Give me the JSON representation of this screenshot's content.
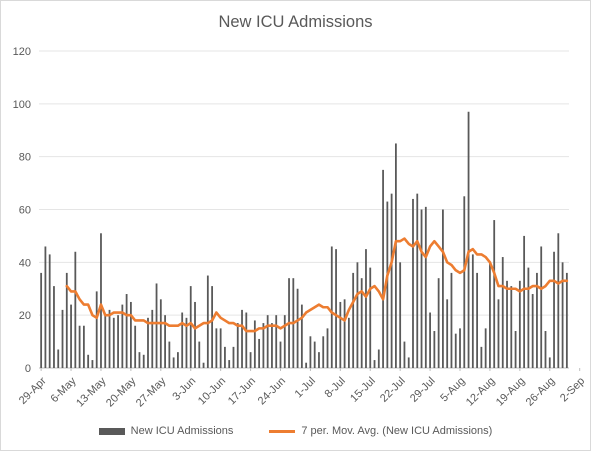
{
  "chart_data": {
    "type": "bar",
    "title": "New ICU Admissions",
    "xlabel": "",
    "ylabel": "",
    "ylim": [
      0,
      120
    ],
    "y_ticks": [
      "0",
      "20",
      "40",
      "60",
      "80",
      "100",
      "120"
    ],
    "grid": true,
    "legend_position": "bottom",
    "x_tick_labels": [
      "29-Apr",
      "6-May",
      "13-May",
      "20-May",
      "27-May",
      "3-Jun",
      "10-Jun",
      "17-Jun",
      "24-Jun",
      "1-Jul",
      "8-Jul",
      "15-Jul",
      "22-Jul",
      "29-Jul",
      "5-Aug",
      "12-Aug",
      "19-Aug",
      "26-Aug",
      "2-Sep"
    ],
    "series": [
      {
        "name": "New ICU Admissions",
        "kind": "bar",
        "color": "#595959",
        "values": [
          36,
          46,
          43,
          31,
          7,
          22,
          36,
          24,
          44,
          16,
          16,
          5,
          3,
          29,
          51,
          20,
          22,
          19,
          20,
          24,
          28,
          25,
          16,
          6,
          5,
          19,
          22,
          32,
          26,
          20,
          10,
          4,
          6,
          21,
          19,
          31,
          25,
          10,
          2,
          35,
          31,
          15,
          15,
          8,
          3,
          8,
          17,
          22,
          21,
          6,
          18,
          11,
          17,
          20,
          17,
          20,
          10,
          20,
          34,
          34,
          30,
          24,
          2,
          12,
          10,
          6,
          12,
          15,
          46,
          45,
          25,
          26,
          19,
          36,
          40,
          34,
          45,
          38,
          3,
          7,
          75,
          63,
          66,
          85,
          40,
          10,
          4,
          64,
          66,
          60,
          61,
          21,
          14,
          34,
          60,
          26,
          36,
          13,
          15,
          65,
          97,
          43,
          36,
          8,
          15,
          40,
          56,
          26,
          42,
          33,
          31,
          14,
          33,
          50,
          38,
          28,
          36,
          46,
          14,
          4,
          44,
          51,
          40,
          36
        ]
      },
      {
        "name": "7 per. Mov. Avg. (New ICU Admissions)",
        "kind": "line",
        "color": "#ed7d31",
        "values": [
          null,
          null,
          null,
          null,
          null,
          null,
          31,
          29,
          29,
          26,
          24,
          24,
          20,
          19,
          24,
          20,
          20,
          21,
          21,
          21,
          20,
          20,
          18,
          18,
          18,
          17,
          17,
          17,
          17,
          17,
          16,
          16,
          16,
          17,
          16,
          17,
          15,
          16,
          17,
          17,
          18,
          21,
          19,
          18,
          17,
          17,
          16,
          16,
          14,
          14,
          14,
          15,
          15,
          16,
          16,
          16,
          15,
          16,
          17,
          17,
          18,
          19,
          21,
          22,
          23,
          24,
          23,
          23,
          21,
          20,
          19,
          18,
          22,
          25,
          28,
          29,
          27,
          30,
          31,
          29,
          26,
          35,
          40,
          48,
          48,
          49,
          47,
          46,
          48,
          44,
          42,
          46,
          48,
          46,
          44,
          40,
          39,
          37,
          36,
          37,
          44,
          45,
          43,
          43,
          42,
          40,
          36,
          31,
          31,
          30,
          30,
          30,
          29,
          30,
          30,
          31,
          31,
          30,
          31,
          33,
          33,
          32,
          33,
          33
        ]
      }
    ]
  }
}
